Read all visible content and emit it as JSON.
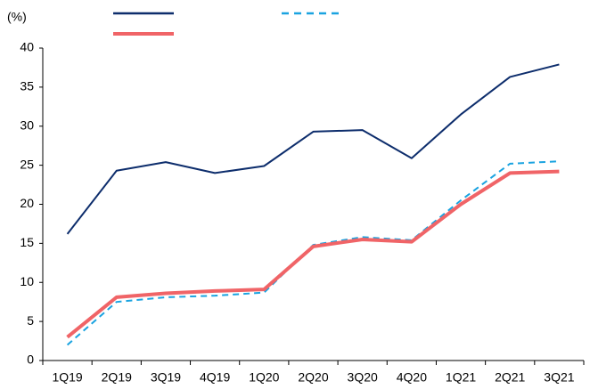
{
  "chart_data": {
    "type": "line",
    "y_label": "(%)",
    "categories": [
      "1Q19",
      "2Q19",
      "3Q19",
      "4Q19",
      "1Q20",
      "2Q20",
      "3Q20",
      "4Q20",
      "1Q21",
      "2Q21",
      "3Q21"
    ],
    "series": [
      {
        "color": "#0d2d6c",
        "width": 2,
        "dashed": false,
        "values": [
          16.2,
          24.3,
          25.4,
          24.0,
          24.9,
          29.3,
          29.5,
          25.9,
          31.5,
          36.3,
          37.9
        ]
      },
      {
        "color": "#1aa3e0",
        "width": 2,
        "dashed": true,
        "values": [
          2.0,
          7.5,
          8.1,
          8.3,
          8.7,
          14.8,
          15.8,
          15.4,
          20.5,
          25.2,
          25.5
        ]
      },
      {
        "color": "#f06467",
        "width": 4,
        "dashed": false,
        "values": [
          3.0,
          8.1,
          8.6,
          8.9,
          9.1,
          14.6,
          15.5,
          15.2,
          20.0,
          24.0,
          24.2
        ]
      }
    ],
    "ylim": [
      0,
      40
    ],
    "yticks": [
      0,
      5,
      10,
      15,
      20,
      25,
      30,
      35,
      40
    ],
    "grid": false
  }
}
